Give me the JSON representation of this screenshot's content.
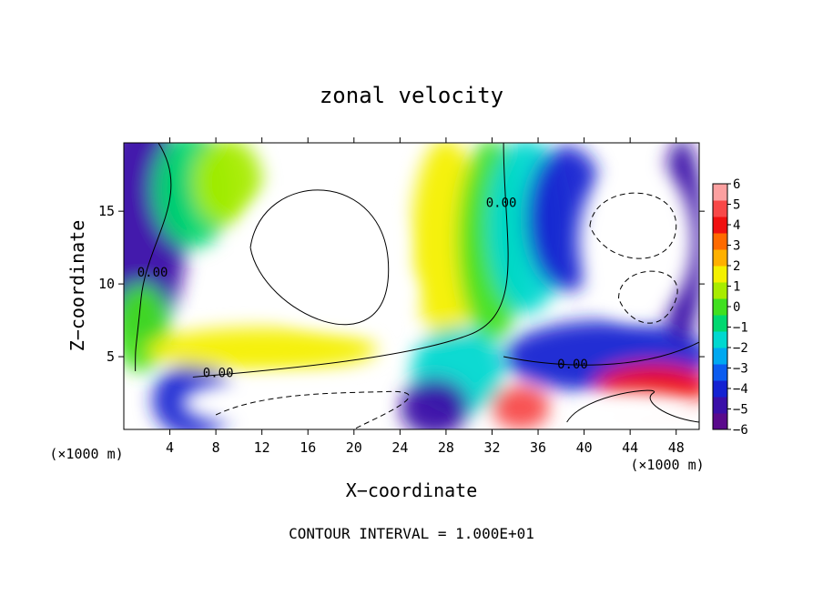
{
  "chart_data": {
    "type": "heatmap",
    "title": "zonal velocity",
    "xlabel": "X−coordinate",
    "ylabel": "Z−coordinate",
    "x_unit_left": "(×1000 m)",
    "x_unit_right": "(×1000 m)",
    "footer": "CONTOUR INTERVAL = 1.000E+01",
    "xlim": [
      0,
      50
    ],
    "ylim": [
      0,
      19.7
    ],
    "x_ticks": [
      {
        "v": 4,
        "label": "4"
      },
      {
        "v": 8,
        "label": "8"
      },
      {
        "v": 12,
        "label": "12"
      },
      {
        "v": 16,
        "label": "16"
      },
      {
        "v": 20,
        "label": "20"
      },
      {
        "v": 24,
        "label": "24"
      },
      {
        "v": 28,
        "label": "28"
      },
      {
        "v": 32,
        "label": "32"
      },
      {
        "v": 36,
        "label": "36"
      },
      {
        "v": 40,
        "label": "40"
      },
      {
        "v": 44,
        "label": "44"
      },
      {
        "v": 48,
        "label": "48"
      }
    ],
    "y_ticks": [
      {
        "v": 5,
        "label": "5"
      },
      {
        "v": 10,
        "label": "10"
      },
      {
        "v": 15,
        "label": "15"
      }
    ],
    "colorbar": {
      "range": [
        -6,
        6
      ],
      "labels": [
        "6",
        "5",
        "4",
        "3",
        "2",
        "1",
        "0",
        "−1",
        "−2",
        "−3",
        "−4",
        "−5",
        "−6"
      ],
      "colors": [
        "#5a0a8c",
        "#3a0fa8",
        "#1422d2",
        "#0b5cf0",
        "#00a8f0",
        "#00d8d0",
        "#00d870",
        "#40e020",
        "#a8ec00",
        "#f4f000",
        "#ffb000",
        "#ff6a00",
        "#f01010",
        "#f84848",
        "#fca0a0"
      ]
    },
    "contour_labels": [
      {
        "x": 2.5,
        "y": 10.5,
        "text": "0.00"
      },
      {
        "x": 32.8,
        "y": 15.3,
        "text": "0.00"
      },
      {
        "x": 8.2,
        "y": 3.6,
        "text": "0.00"
      },
      {
        "x": 39.0,
        "y": 4.2,
        "text": "0.00"
      }
    ],
    "field_blobs": [
      {
        "x": 1.5,
        "y": 14.0,
        "rx": 4.0,
        "ry": 8.0,
        "v": -5
      },
      {
        "x": 6.0,
        "y": 16.5,
        "rx": 3.5,
        "ry": 4.0,
        "v": -1
      },
      {
        "x": 9.0,
        "y": 17.0,
        "rx": 3.0,
        "ry": 3.0,
        "v": 1
      },
      {
        "x": 1.5,
        "y": 7.0,
        "rx": 2.5,
        "ry": 3.0,
        "v": 0
      },
      {
        "x": 6.0,
        "y": 2.0,
        "rx": 3.5,
        "ry": 2.5,
        "v": -4
      },
      {
        "x": 12.0,
        "y": 5.5,
        "rx": 10.0,
        "ry": 1.5,
        "v": 2
      },
      {
        "x": 28.0,
        "y": 13.0,
        "rx": 3.0,
        "ry": 7.0,
        "v": 2
      },
      {
        "x": 32.0,
        "y": 13.0,
        "rx": 3.0,
        "ry": 7.0,
        "v": 0
      },
      {
        "x": 35.0,
        "y": 14.0,
        "rx": 3.5,
        "ry": 6.0,
        "v": -2
      },
      {
        "x": 38.5,
        "y": 14.5,
        "rx": 3.5,
        "ry": 5.0,
        "v": -4
      },
      {
        "x": 29.0,
        "y": 4.0,
        "rx": 4.0,
        "ry": 3.0,
        "v": -2
      },
      {
        "x": 27.0,
        "y": 1.5,
        "rx": 3.0,
        "ry": 2.0,
        "v": -5
      },
      {
        "x": 42.0,
        "y": 5.0,
        "rx": 9.0,
        "ry": 2.5,
        "v": -4
      },
      {
        "x": 48.5,
        "y": 13.0,
        "rx": 2.0,
        "ry": 7.0,
        "v": -5
      },
      {
        "x": 46.0,
        "y": 3.0,
        "rx": 5.0,
        "ry": 1.5,
        "v": 4
      },
      {
        "x": 34.5,
        "y": 1.5,
        "rx": 2.5,
        "ry": 1.5,
        "v": 5
      }
    ],
    "white_regions": [
      {
        "x": 17.0,
        "y": 12.5,
        "rx": 7.5,
        "ry": 4.8
      },
      {
        "x": 19.0,
        "y": 9.5,
        "rx": 6.5,
        "ry": 2.5
      },
      {
        "x": 44.5,
        "y": 13.0,
        "rx": 5.0,
        "ry": 5.5
      },
      {
        "x": 14.0,
        "y": 1.8,
        "rx": 9.0,
        "ry": 1.8
      },
      {
        "x": 44.0,
        "y": 1.2,
        "rx": 6.0,
        "ry": 1.4
      }
    ]
  }
}
